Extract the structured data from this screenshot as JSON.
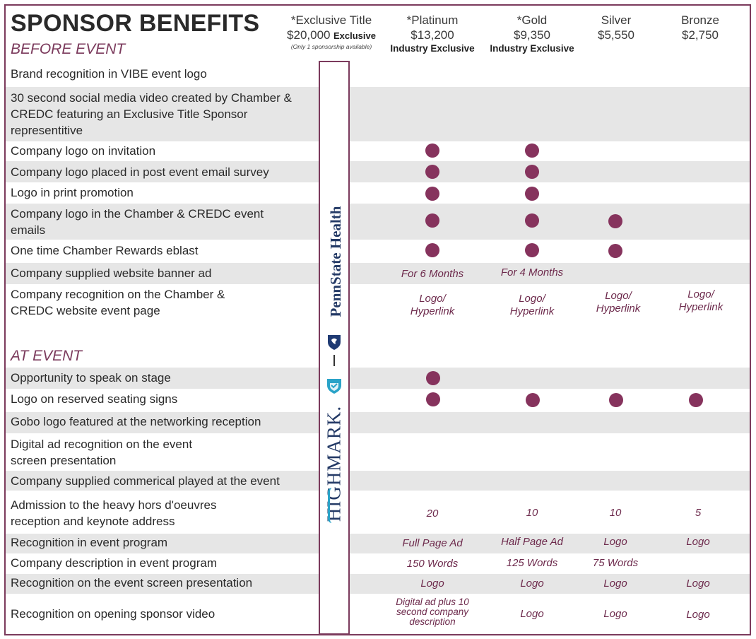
{
  "header": {
    "title": "SPONSOR BENEFITS",
    "before_event": "BEFORE EVENT",
    "at_event": "AT EVENT"
  },
  "tiers": [
    {
      "name": "*Exclusive Title",
      "price": "$20,000",
      "tag": "Exclusive",
      "note": "(Only 1 sponsorship available)"
    },
    {
      "name": "*Platinum",
      "price": "$13,200",
      "tag": "Industry Exclusive"
    },
    {
      "name": "*Gold",
      "price": "$9,350",
      "tag": "Industry Exclusive"
    },
    {
      "name": "Silver",
      "price": "$5,550"
    },
    {
      "name": "Bronze",
      "price": "$2,750"
    }
  ],
  "logos": {
    "partner_top": "PennState Health",
    "partner_bottom": "HIGHMARK."
  },
  "colors": {
    "accent": "#86335d",
    "band": "#e6e6e6"
  },
  "rows": [
    {
      "label": "Brand recognition in VIBE event logo"
    },
    {
      "label": "30 second social media video created by Chamber & CREDC featuring an Exclusive Title Sponsor representitive"
    },
    {
      "label": "Company logo on invitation",
      "cells": [
        "dot",
        "dot",
        "",
        ""
      ]
    },
    {
      "label": "Company logo placed in post event email survey",
      "cells": [
        "dot",
        "dot",
        "",
        ""
      ]
    },
    {
      "label": "Logo in print promotion",
      "cells": [
        "dot",
        "dot",
        "",
        ""
      ]
    },
    {
      "label": "Company logo in the Chamber & CREDC event emails",
      "cells": [
        "dot",
        "dot",
        "dot",
        ""
      ]
    },
    {
      "label": "One time Chamber Rewards eblast",
      "cells": [
        "dot",
        "dot",
        "dot",
        ""
      ]
    },
    {
      "label": "Company supplied website banner ad",
      "cells": [
        "For 6 Months",
        "For 4 Months",
        "",
        ""
      ]
    },
    {
      "label": "Company recognition on the Chamber & CREDC website event page",
      "cells": [
        "Logo/ Hyperlink",
        "Logo/ Hyperlink",
        "Logo/ Hyperlink",
        "Logo/ Hyperlink"
      ]
    },
    {
      "label": "Opportunity to speak on stage",
      "cells": [
        "dot",
        "",
        "",
        ""
      ]
    },
    {
      "label": "Logo on reserved seating signs",
      "cells": [
        "dot",
        "dot",
        "dot",
        "dot"
      ]
    },
    {
      "label": "Gobo logo featured at the networking reception"
    },
    {
      "label": "Digital ad recognition on the event screen presentation"
    },
    {
      "label": "Company supplied commerical played at the event"
    },
    {
      "label": "Admission to the heavy hors d'oeuvres reception and keynote address",
      "cells": [
        "20",
        "10",
        "10",
        "5"
      ]
    },
    {
      "label": "Recognition in event program",
      "cells": [
        "Full Page Ad",
        "Half Page Ad",
        "Logo",
        "Logo"
      ]
    },
    {
      "label": "Company description in event program",
      "cells": [
        "150 Words",
        "125 Words",
        "75 Words",
        ""
      ]
    },
    {
      "label": "Recognition on the event screen presentation",
      "cells": [
        "Logo",
        "Logo",
        "Logo",
        "Logo"
      ]
    },
    {
      "label": "Recognition on opening sponsor video",
      "cells": [
        "Digital ad plus 10 second company description",
        "Logo",
        "Logo",
        "Logo"
      ]
    }
  ]
}
